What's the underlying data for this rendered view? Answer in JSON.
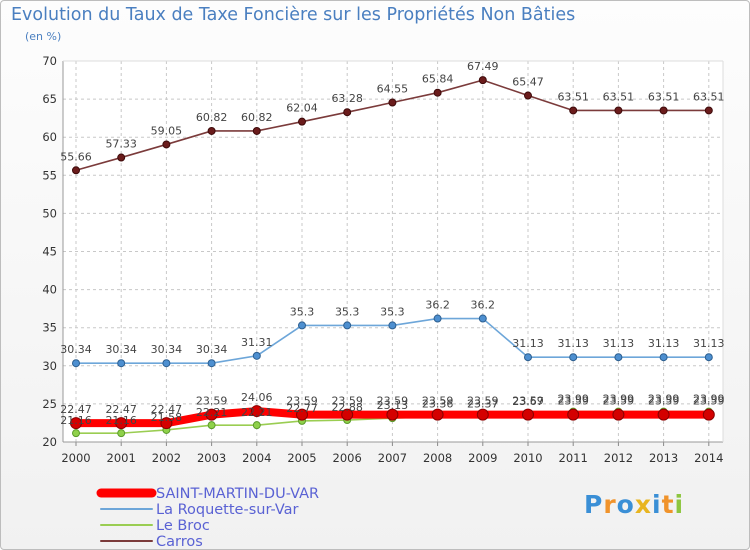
{
  "chart_data": {
    "type": "line",
    "title": "Evolution du Taux de Taxe Foncière sur les Propriétés Non Bâties",
    "subtitle": "(en %)",
    "ylim": [
      20,
      70
    ],
    "yticks": [
      20,
      25,
      30,
      35,
      40,
      45,
      50,
      55,
      60,
      65,
      70
    ],
    "x": [
      "2000",
      "2001",
      "2002",
      "2003",
      "2004",
      "2005",
      "2006",
      "2007",
      "2008",
      "2009",
      "2010",
      "2011",
      "2012",
      "2013",
      "2014"
    ],
    "series": [
      {
        "name": "SAINT-MARTIN-DU-VAR",
        "color": "#ff0000",
        "values": [
          22.47,
          22.47,
          22.47,
          23.59,
          24.06,
          23.59,
          23.59,
          23.59,
          23.59,
          23.59,
          23.59,
          23.59,
          23.59,
          23.59,
          23.59
        ],
        "labels": [
          "22.47",
          "22.47",
          "22.47",
          "23.59",
          "24.06",
          "23.59",
          "23.59",
          "23.59",
          "23.59",
          "23.59",
          "23.59",
          "23.59",
          "23.59",
          "23.59",
          "23.59"
        ]
      },
      {
        "name": "La Roquette-sur-Var",
        "color": "#6da6d9",
        "values": [
          30.34,
          30.34,
          30.34,
          30.34,
          31.31,
          35.3,
          35.3,
          35.3,
          36.2,
          36.2,
          31.13,
          31.13,
          31.13,
          31.13,
          31.13
        ],
        "labels": [
          "30.34",
          "30.34",
          "30.34",
          "30.34",
          "31.31",
          "35.3",
          "35.3",
          "35.3",
          "36.2",
          "36.2",
          "31.13",
          "31.13",
          "31.13",
          "31.13",
          "31.13"
        ]
      },
      {
        "name": "Le Broc",
        "color": "#9acd52",
        "values": [
          21.16,
          21.16,
          21.58,
          22.21,
          22.21,
          22.77,
          22.88,
          23.13,
          23.36,
          23.37,
          23.67,
          23.99,
          23.99,
          23.99,
          23.99
        ],
        "labels": [
          "21.16",
          "21.16",
          "21.58",
          "22.21",
          "22.21",
          "22.77",
          "22.88",
          "23.13",
          "23.36",
          "23.37",
          "23.67",
          "23.99",
          "23.99",
          "23.99",
          "23.99"
        ]
      },
      {
        "name": "Carros",
        "color": "#7b3b3b",
        "values": [
          55.66,
          57.33,
          59.05,
          60.82,
          60.82,
          62.04,
          63.28,
          64.55,
          65.84,
          67.49,
          65.47,
          63.51,
          63.51,
          63.51,
          63.51
        ],
        "labels": [
          "55.66",
          "57.33",
          "59.05",
          "60.82",
          "60.82",
          "62.04",
          "63.28",
          "64.55",
          "65.84",
          "67.49",
          "65.47",
          "63.51",
          "63.51",
          "63.51",
          "63.51"
        ]
      }
    ],
    "legend_position": "bottom-left"
  },
  "logo": {
    "letters": [
      "P",
      "r",
      "o",
      "x",
      "i",
      "t",
      "i"
    ],
    "colors": [
      "#3a8fd6",
      "#f0932b",
      "#3a8fd6",
      "#e8b520",
      "#3a8fd6",
      "#f0932b",
      "#8dc63f"
    ]
  }
}
